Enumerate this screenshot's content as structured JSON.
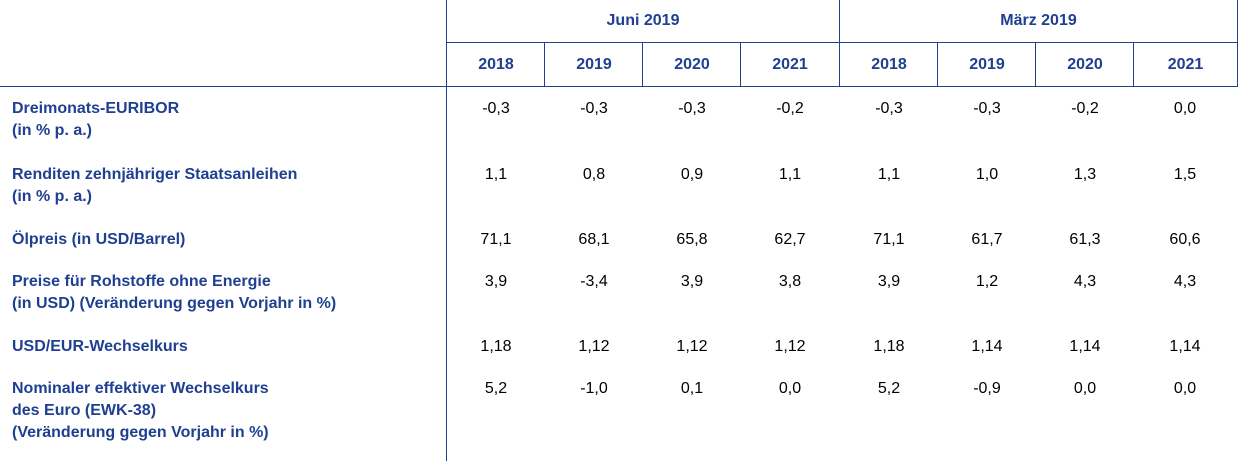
{
  "header": {
    "groups": [
      "Juni 2019",
      "März 2019"
    ],
    "years": [
      "2018",
      "2019",
      "2020",
      "2021",
      "2018",
      "2019",
      "2020",
      "2021"
    ]
  },
  "rows": [
    {
      "label_lines": [
        "Dreimonats-EURIBOR",
        "(in % p. a.)"
      ],
      "values": [
        "-0,3",
        "-0,3",
        "-0,3",
        "-0,2",
        "-0,3",
        "-0,3",
        "-0,2",
        "0,0"
      ]
    },
    {
      "label_lines": [
        "Renditen zehnjähriger Staatsanleihen",
        "(in % p. a.)"
      ],
      "values": [
        "1,1",
        "0,8",
        "0,9",
        "1,1",
        "1,1",
        "1,0",
        "1,3",
        "1,5"
      ]
    },
    {
      "label_lines": [
        "Ölpreis (in USD/Barrel)"
      ],
      "values": [
        "71,1",
        "68,1",
        "65,8",
        "62,7",
        "71,1",
        "61,7",
        "61,3",
        "60,6"
      ]
    },
    {
      "label_lines": [
        "Preise für Rohstoffe ohne Energie",
        "(in USD) (Veränderung gegen Vorjahr in %)"
      ],
      "values": [
        "3,9",
        "-3,4",
        "3,9",
        "3,8",
        "3,9",
        "1,2",
        "4,3",
        "4,3"
      ]
    },
    {
      "label_lines": [
        "USD/EUR-Wechselkurs"
      ],
      "values": [
        "1,18",
        "1,12",
        "1,12",
        "1,12",
        "1,18",
        "1,14",
        "1,14",
        "1,14"
      ]
    },
    {
      "label_lines": [
        "Nominaler effektiver Wechselkurs",
        "des Euro (EWK-38)",
        "(Veränderung gegen Vorjahr in %)"
      ],
      "values": [
        "5,2",
        "-1,0",
        "0,1",
        "0,0",
        "5,2",
        "-0,9",
        "0,0",
        "0,0"
      ]
    }
  ]
}
